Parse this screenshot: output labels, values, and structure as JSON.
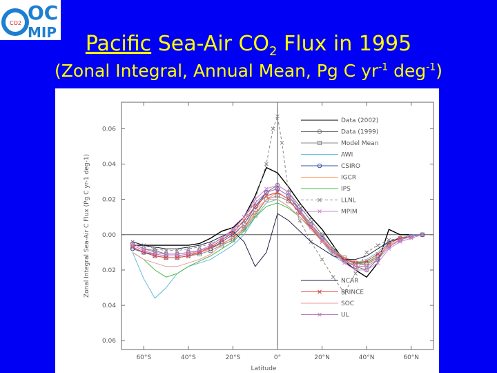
{
  "header": {
    "logo_top": "OC",
    "logo_co2": "CO2",
    "logo_bottom": "MIP",
    "title_underlined": "Pacific",
    "title_rest": " Sea-Air CO",
    "title_sub": "2",
    "title_end": " Flux in 1995",
    "subtitle_start": "(Zonal Integral, Annual Mean, Pg C yr",
    "subtitle_sup1": "-1",
    "subtitle_mid": " deg",
    "subtitle_sup2": "-1",
    "subtitle_end": ")"
  },
  "colors": {
    "background": "#0000f5",
    "title": "#ffff00"
  },
  "chart_data": {
    "type": "line",
    "title": "",
    "xlabel": "Latitude",
    "ylabel": "Zonal Integral Sea-Air C Flux (Pg C yr-1 deg-1)",
    "xlim": [
      -70,
      70
    ],
    "ylim": [
      -0.065,
      0.075
    ],
    "x_ticks": [
      -60,
      -40,
      -20,
      0,
      20,
      40,
      60
    ],
    "x_tick_labels": [
      "60°S",
      "40°S",
      "20°S",
      "0°",
      "20°N",
      "40°N",
      "60°N"
    ],
    "y_ticks": [
      0.06,
      0.04,
      0.02,
      0.0,
      -0.02,
      -0.04,
      -0.06
    ],
    "y_tick_labels": [
      "0.06",
      "0.04",
      "0.02",
      "0.00",
      "0.02",
      "0.04",
      "0.06"
    ],
    "legend_position": "right",
    "series": [
      {
        "name": "Data (2002)",
        "color": "#000000",
        "marker": "none",
        "dash": "",
        "x": [
          -65,
          -60,
          -55,
          -50,
          -45,
          -40,
          -35,
          -30,
          -25,
          -20,
          -15,
          -10,
          -5,
          0,
          5,
          10,
          15,
          20,
          25,
          30,
          35,
          40,
          45,
          50,
          55,
          60,
          65
        ],
        "y": [
          -0.006,
          -0.006,
          -0.006,
          -0.006,
          -0.006,
          -0.006,
          -0.005,
          -0.002,
          0.002,
          0.004,
          0.01,
          0.022,
          0.038,
          0.035,
          0.027,
          0.018,
          0.01,
          0.003,
          -0.006,
          -0.015,
          -0.02,
          -0.024,
          -0.016,
          0.003,
          0.0,
          0.0,
          0.0
        ]
      },
      {
        "name": "Data (1999)",
        "color": "#777777",
        "marker": "circle",
        "dash": "",
        "x": [
          -65,
          -60,
          -55,
          -50,
          -45,
          -40,
          -35,
          -30,
          -25,
          -20,
          -15,
          -10,
          -5,
          0,
          5,
          10,
          15,
          20,
          25,
          30,
          35,
          40,
          45,
          50,
          55,
          60,
          65
        ],
        "y": [
          -0.005,
          -0.008,
          -0.009,
          -0.011,
          -0.011,
          -0.01,
          -0.009,
          -0.007,
          -0.005,
          -0.002,
          0.004,
          0.014,
          0.024,
          0.028,
          0.024,
          0.016,
          0.008,
          0.0,
          -0.008,
          -0.014,
          -0.018,
          -0.02,
          -0.014,
          -0.005,
          -0.002,
          -0.001,
          0.0
        ]
      },
      {
        "name": "Model Mean",
        "color": "#888888",
        "marker": "square",
        "dash": "",
        "x": [
          -65,
          -60,
          -55,
          -50,
          -45,
          -40,
          -35,
          -30,
          -25,
          -20,
          -15,
          -10,
          -5,
          0,
          5,
          10,
          15,
          20,
          25,
          30,
          35,
          40,
          45,
          50,
          55,
          60,
          65
        ],
        "y": [
          -0.007,
          -0.01,
          -0.012,
          -0.013,
          -0.013,
          -0.012,
          -0.011,
          -0.009,
          -0.006,
          -0.003,
          0.003,
          0.011,
          0.02,
          0.022,
          0.019,
          0.013,
          0.006,
          -0.001,
          -0.008,
          -0.013,
          -0.016,
          -0.017,
          -0.013,
          -0.006,
          -0.003,
          -0.001,
          0.0
        ]
      },
      {
        "name": "AWI",
        "color": "#66bbdd",
        "marker": "none",
        "dash": "",
        "x": [
          -65,
          -60,
          -55,
          -50,
          -45,
          -40,
          -35,
          -30,
          -25,
          -20,
          -15,
          -10,
          -5,
          0,
          5,
          10,
          15,
          20,
          25,
          30,
          35,
          40,
          45,
          50,
          55,
          60,
          65
        ],
        "y": [
          -0.01,
          -0.025,
          -0.036,
          -0.03,
          -0.022,
          -0.018,
          -0.016,
          -0.014,
          -0.01,
          -0.006,
          0.0,
          0.01,
          0.018,
          0.02,
          0.016,
          0.01,
          0.004,
          -0.004,
          -0.012,
          -0.016,
          -0.016,
          -0.014,
          -0.01,
          -0.004,
          -0.002,
          0.0,
          0.0
        ]
      },
      {
        "name": "CSIRO",
        "color": "#3355aa",
        "marker": "circle",
        "dash": "",
        "x": [
          -65,
          -60,
          -55,
          -50,
          -45,
          -40,
          -35,
          -30,
          -25,
          -20,
          -15,
          -10,
          -5,
          0,
          5,
          10,
          15,
          20,
          25,
          30,
          35,
          40,
          45,
          50,
          55,
          60,
          65
        ],
        "y": [
          -0.008,
          -0.01,
          -0.011,
          -0.012,
          -0.012,
          -0.011,
          -0.01,
          -0.008,
          -0.004,
          0.0,
          0.006,
          0.016,
          0.024,
          0.026,
          0.022,
          0.014,
          0.006,
          -0.002,
          -0.009,
          -0.014,
          -0.016,
          -0.016,
          -0.012,
          -0.006,
          -0.003,
          -0.001,
          0.0
        ]
      },
      {
        "name": "IGCR",
        "color": "#ff8844",
        "marker": "none",
        "dash": "",
        "x": [
          -65,
          -60,
          -55,
          -50,
          -45,
          -40,
          -35,
          -30,
          -25,
          -20,
          -15,
          -10,
          -5,
          0,
          5,
          10,
          15,
          20,
          25,
          30,
          35,
          40,
          45,
          50,
          55,
          60,
          65
        ],
        "y": [
          -0.006,
          -0.009,
          -0.011,
          -0.012,
          -0.012,
          -0.011,
          -0.01,
          -0.008,
          -0.005,
          -0.002,
          0.004,
          0.012,
          0.02,
          0.024,
          0.02,
          0.012,
          0.005,
          -0.002,
          -0.009,
          -0.013,
          -0.015,
          -0.016,
          -0.012,
          -0.006,
          -0.003,
          -0.001,
          0.0
        ]
      },
      {
        "name": "IPS",
        "color": "#44bb44",
        "marker": "none",
        "dash": "",
        "x": [
          -65,
          -60,
          -55,
          -50,
          -45,
          -40,
          -35,
          -30,
          -25,
          -20,
          -15,
          -10,
          -5,
          0,
          5,
          10,
          15,
          20,
          25,
          30,
          35,
          40,
          45,
          50,
          55,
          60,
          65
        ],
        "y": [
          -0.01,
          -0.014,
          -0.02,
          -0.024,
          -0.022,
          -0.018,
          -0.015,
          -0.012,
          -0.008,
          -0.004,
          0.002,
          0.01,
          0.016,
          0.018,
          0.015,
          0.01,
          0.004,
          -0.003,
          -0.01,
          -0.014,
          -0.016,
          -0.016,
          -0.012,
          -0.006,
          -0.003,
          -0.001,
          0.0
        ]
      },
      {
        "name": "LLNL",
        "color": "#888888",
        "marker": "x",
        "dash": "4 3",
        "x": [
          -65,
          -60,
          -55,
          -50,
          -45,
          -40,
          -35,
          -30,
          -25,
          -20,
          -15,
          -10,
          -5,
          -2,
          0,
          2,
          5,
          10,
          15,
          20,
          25,
          30,
          35,
          40,
          45,
          50,
          55,
          60,
          65
        ],
        "y": [
          -0.004,
          -0.006,
          -0.008,
          -0.009,
          -0.009,
          -0.008,
          -0.007,
          -0.005,
          -0.002,
          0.002,
          0.008,
          0.02,
          0.04,
          0.06,
          0.067,
          0.052,
          0.024,
          0.008,
          -0.004,
          -0.014,
          -0.024,
          -0.033,
          -0.022,
          -0.01,
          -0.006,
          -0.003,
          -0.002,
          -0.001,
          0.0
        ]
      },
      {
        "name": "MPIM",
        "color": "#cc88cc",
        "marker": "x",
        "dash": "",
        "x": [
          -65,
          -60,
          -55,
          -50,
          -45,
          -40,
          -35,
          -30,
          -25,
          -20,
          -15,
          -10,
          -5,
          0,
          5,
          10,
          15,
          20,
          25,
          30,
          35,
          40,
          45,
          50,
          55,
          60,
          65
        ],
        "y": [
          -0.006,
          -0.009,
          -0.011,
          -0.012,
          -0.012,
          -0.011,
          -0.009,
          -0.007,
          -0.003,
          0.002,
          0.01,
          0.02,
          0.026,
          0.028,
          0.024,
          0.014,
          0.006,
          -0.002,
          -0.01,
          -0.016,
          -0.02,
          -0.02,
          -0.016,
          -0.008,
          -0.004,
          -0.002,
          0.0
        ]
      },
      {
        "name": "NCAR",
        "color": "#222244",
        "marker": "none",
        "dash": "",
        "x": [
          -65,
          -60,
          -55,
          -50,
          -45,
          -40,
          -35,
          -30,
          -25,
          -20,
          -15,
          -10,
          -5,
          0,
          5,
          10,
          15,
          20,
          25,
          30,
          35,
          40,
          45,
          50,
          55,
          60,
          65
        ],
        "y": [
          -0.004,
          -0.006,
          -0.007,
          -0.008,
          -0.008,
          -0.007,
          -0.006,
          -0.004,
          -0.001,
          0.002,
          -0.004,
          -0.018,
          -0.01,
          0.012,
          0.008,
          0.002,
          -0.004,
          -0.008,
          -0.012,
          -0.014,
          -0.014,
          -0.012,
          -0.008,
          -0.004,
          -0.002,
          -0.001,
          0.0
        ]
      },
      {
        "name": "PRINCE",
        "color": "#dd4444",
        "marker": "x",
        "dash": "",
        "x": [
          -65,
          -60,
          -55,
          -50,
          -45,
          -40,
          -35,
          -30,
          -25,
          -20,
          -15,
          -10,
          -5,
          0,
          5,
          10,
          15,
          20,
          25,
          30,
          35,
          40,
          45,
          50,
          55,
          60,
          65
        ],
        "y": [
          -0.007,
          -0.01,
          -0.012,
          -0.013,
          -0.013,
          -0.012,
          -0.01,
          -0.007,
          -0.003,
          0.001,
          0.008,
          0.016,
          0.022,
          0.024,
          0.02,
          0.012,
          0.004,
          -0.004,
          -0.01,
          -0.014,
          -0.016,
          -0.015,
          -0.011,
          -0.005,
          -0.002,
          -0.001,
          0.0
        ]
      },
      {
        "name": "SOC",
        "color": "#ee9999",
        "marker": "none",
        "dash": "",
        "x": [
          -65,
          -60,
          -55,
          -50,
          -45,
          -40,
          -35,
          -30,
          -25,
          -20,
          -15,
          -10,
          -5,
          0,
          5,
          10,
          15,
          20,
          25,
          30,
          35,
          40,
          45,
          50,
          55,
          60,
          65
        ],
        "y": [
          -0.01,
          -0.014,
          -0.016,
          -0.018,
          -0.018,
          -0.016,
          -0.014,
          -0.011,
          -0.006,
          -0.001,
          0.006,
          0.014,
          0.02,
          0.02,
          0.016,
          0.01,
          0.003,
          -0.004,
          -0.011,
          -0.015,
          -0.017,
          -0.017,
          -0.012,
          -0.006,
          -0.003,
          -0.001,
          0.0
        ]
      },
      {
        "name": "UL",
        "color": "#bb77bb",
        "marker": "x",
        "dash": "",
        "x": [
          -65,
          -60,
          -55,
          -50,
          -45,
          -40,
          -35,
          -30,
          -25,
          -20,
          -15,
          -10,
          -5,
          0,
          5,
          10,
          15,
          20,
          25,
          30,
          35,
          40,
          45,
          50,
          55,
          60,
          65
        ],
        "y": [
          -0.005,
          -0.008,
          -0.01,
          -0.011,
          -0.011,
          -0.01,
          -0.009,
          -0.006,
          -0.002,
          0.003,
          0.01,
          0.018,
          0.024,
          0.026,
          0.022,
          0.013,
          0.005,
          -0.003,
          -0.01,
          -0.015,
          -0.018,
          -0.018,
          -0.014,
          -0.007,
          -0.003,
          -0.001,
          0.0
        ]
      }
    ]
  }
}
